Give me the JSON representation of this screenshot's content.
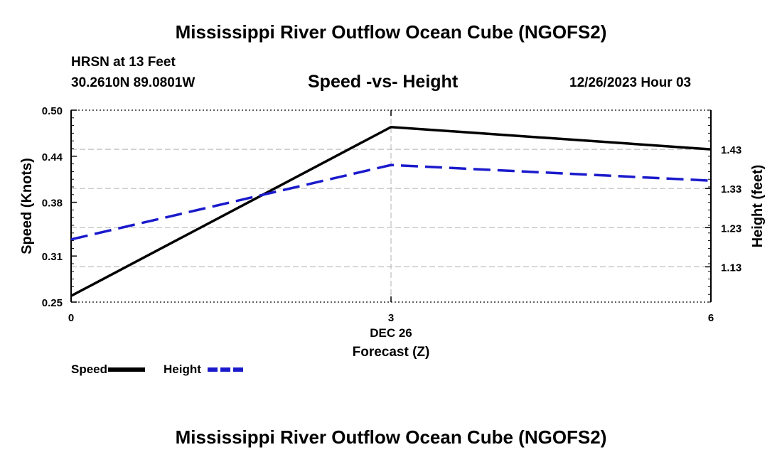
{
  "page": {
    "title_top": "Mississippi River Outflow Ocean Cube (NGOFS2)",
    "title_bottom": "Mississippi River Outflow Ocean Cube (NGOFS2)",
    "station": "HRSN at 13 Feet",
    "coords": "30.2610N  89.0801W",
    "datetime": "12/26/2023 Hour 03"
  },
  "chart_data": {
    "type": "line",
    "title": "Speed -vs- Height",
    "x": [
      0,
      3,
      6
    ],
    "x_tick_labels": [
      "0",
      "3",
      "6"
    ],
    "x_date_label": "DEC 26",
    "xlabel": "Forecast (Z)",
    "xlim": [
      0,
      6
    ],
    "ylabel_left": "Speed (Knots)",
    "ylim_left": [
      0.25,
      0.5
    ],
    "yticks_left": [
      0.25,
      0.31,
      0.38,
      0.44,
      0.5
    ],
    "ytick_labels_left": [
      "0.25",
      "0.31",
      "0.38",
      "0.44",
      "0.50"
    ],
    "ylabel_right": "Height (feet)",
    "ylim_right": [
      1.04,
      1.53
    ],
    "yticks_right": [
      1.13,
      1.23,
      1.33,
      1.43
    ],
    "ytick_labels_right": [
      "1.13",
      "1.23",
      "1.33",
      "1.43"
    ],
    "grid": true,
    "series": [
      {
        "name": "Speed",
        "axis": "left",
        "color": "#000000",
        "dash": "solid",
        "values": [
          0.258,
          0.478,
          0.449
        ]
      },
      {
        "name": "Height",
        "axis": "right",
        "color": "#1a1acc",
        "dash": "dashed",
        "values": [
          1.2,
          1.39,
          1.35
        ]
      }
    ],
    "legend": [
      {
        "label": "Speed",
        "color": "#000000",
        "dash": "solid"
      },
      {
        "label": "Height",
        "color": "#1a1acc",
        "dash": "dashed"
      }
    ],
    "legend_placement": "bottom-left"
  }
}
